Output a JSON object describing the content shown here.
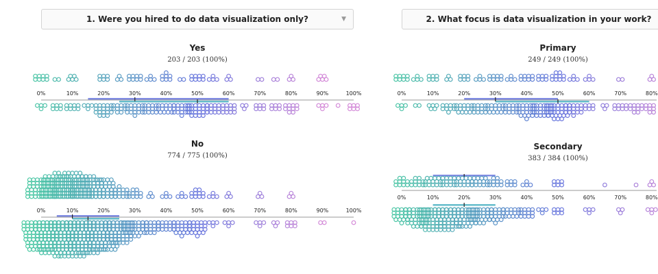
{
  "questions": [
    {
      "label": "1. Were you hired to do data visualization only?",
      "caret": "▼"
    },
    {
      "label": "2. What focus is data visualization in your work?",
      "caret": "▼"
    }
  ],
  "colors": {
    "low": "#4ec3a8",
    "mid": "#6a78de",
    "high": "#d48ad8",
    "bar_top": "#6a78de",
    "bar_bottom": "#4ab1c2",
    "axis": "#999999"
  },
  "chart_data": [
    {
      "type": "beeswarm",
      "title": "Yes",
      "subtitle": "203 / 203 (100%)",
      "xlim": [
        0,
        100
      ],
      "ticks": [
        "0%",
        "10%",
        "20%",
        "30%",
        "40%",
        "50%",
        "60%",
        "70%",
        "80%",
        "90%",
        "100%"
      ],
      "top_range": [
        15,
        60
      ],
      "top_median": 30,
      "bottom_range": [
        25,
        60
      ],
      "bottom_median": 50,
      "top_counts": [
        [
          0,
          8
        ],
        [
          5,
          2
        ],
        [
          10,
          5
        ],
        [
          20,
          6
        ],
        [
          25,
          3
        ],
        [
          30,
          8
        ],
        [
          35,
          4
        ],
        [
          40,
          7
        ],
        [
          45,
          2
        ],
        [
          50,
          8
        ],
        [
          55,
          4
        ],
        [
          60,
          3
        ],
        [
          70,
          2
        ],
        [
          75,
          2
        ],
        [
          80,
          3
        ],
        [
          90,
          5
        ]
      ],
      "bottom_counts": [
        [
          0,
          4
        ],
        [
          5,
          6
        ],
        [
          10,
          8
        ],
        [
          15,
          4
        ],
        [
          20,
          18
        ],
        [
          25,
          10
        ],
        [
          30,
          16
        ],
        [
          35,
          12
        ],
        [
          40,
          14
        ],
        [
          45,
          16
        ],
        [
          50,
          22
        ],
        [
          55,
          12
        ],
        [
          60,
          12
        ],
        [
          65,
          3
        ],
        [
          70,
          6
        ],
        [
          75,
          6
        ],
        [
          80,
          10
        ],
        [
          90,
          4
        ],
        [
          95,
          1
        ],
        [
          100,
          6
        ]
      ]
    },
    {
      "type": "beeswarm",
      "title": "No",
      "subtitle": "774 / 775 (100%)",
      "xlim": [
        0,
        100
      ],
      "ticks": [
        "0%",
        "10%",
        "20%",
        "30%",
        "40%",
        "50%",
        "60%",
        "70%",
        "80%",
        "90%",
        "100%"
      ],
      "top_range": [
        5,
        25
      ],
      "top_median": 10,
      "bottom_range": [
        10,
        25
      ],
      "bottom_median": 15,
      "top_counts": [
        [
          0,
          45
        ],
        [
          5,
          60
        ],
        [
          10,
          70
        ],
        [
          15,
          55
        ],
        [
          20,
          38
        ],
        [
          25,
          16
        ],
        [
          30,
          10
        ],
        [
          35,
          3
        ],
        [
          40,
          4
        ],
        [
          45,
          4
        ],
        [
          50,
          10
        ],
        [
          55,
          4
        ],
        [
          60,
          3
        ],
        [
          70,
          3
        ],
        [
          80,
          3
        ]
      ],
      "bottom_counts": [
        [
          0,
          80
        ],
        [
          5,
          110
        ],
        [
          10,
          115
        ],
        [
          15,
          105
        ],
        [
          20,
          80
        ],
        [
          25,
          50
        ],
        [
          30,
          30
        ],
        [
          35,
          18
        ],
        [
          40,
          15
        ],
        [
          45,
          20
        ],
        [
          50,
          20
        ],
        [
          55,
          4
        ],
        [
          60,
          4
        ],
        [
          70,
          4
        ],
        [
          75,
          3
        ],
        [
          80,
          6
        ],
        [
          90,
          2
        ],
        [
          100,
          1
        ]
      ]
    },
    {
      "type": "beeswarm",
      "title": "Primary",
      "subtitle": "249 / 249 (100%)",
      "xlim": [
        0,
        100
      ],
      "ticks": [
        "0%",
        "10%",
        "20%",
        "30%",
        "40%",
        "50%",
        "60%",
        "70%",
        "80%"
      ],
      "top_range": [
        20,
        50
      ],
      "top_median": 30,
      "bottom_range": [
        30,
        60
      ],
      "bottom_median": 50,
      "top_counts": [
        [
          0,
          8
        ],
        [
          5,
          4
        ],
        [
          10,
          6
        ],
        [
          15,
          3
        ],
        [
          20,
          6
        ],
        [
          25,
          4
        ],
        [
          30,
          8
        ],
        [
          35,
          4
        ],
        [
          40,
          8
        ],
        [
          45,
          6
        ],
        [
          50,
          10
        ],
        [
          55,
          4
        ],
        [
          60,
          4
        ],
        [
          70,
          2
        ],
        [
          80,
          3
        ],
        [
          85,
          3
        ]
      ],
      "bottom_counts": [
        [
          0,
          4
        ],
        [
          5,
          2
        ],
        [
          10,
          5
        ],
        [
          15,
          9
        ],
        [
          20,
          14
        ],
        [
          25,
          12
        ],
        [
          30,
          14
        ],
        [
          35,
          12
        ],
        [
          40,
          20
        ],
        [
          45,
          22
        ],
        [
          50,
          30
        ],
        [
          55,
          16
        ],
        [
          60,
          6
        ],
        [
          65,
          3
        ],
        [
          70,
          8
        ],
        [
          75,
          10
        ],
        [
          80,
          10
        ],
        [
          85,
          8
        ]
      ]
    },
    {
      "type": "beeswarm",
      "title": "Secondary",
      "subtitle": "383 / 384 (100%)",
      "xlim": [
        0,
        100
      ],
      "ticks": [
        "0%",
        "10%",
        "20%",
        "30%",
        "40%",
        "50%",
        "60%",
        "70%",
        "80%"
      ],
      "top_range": [
        10,
        30
      ],
      "top_median": 20,
      "bottom_range": [
        10,
        30
      ],
      "bottom_median": 20,
      "top_counts": [
        [
          0,
          10
        ],
        [
          5,
          10
        ],
        [
          10,
          14
        ],
        [
          15,
          12
        ],
        [
          20,
          14
        ],
        [
          25,
          14
        ],
        [
          30,
          10
        ],
        [
          35,
          6
        ],
        [
          40,
          4
        ],
        [
          50,
          6
        ],
        [
          65,
          1
        ],
        [
          75,
          1
        ],
        [
          80,
          3
        ]
      ],
      "bottom_counts": [
        [
          0,
          20
        ],
        [
          5,
          36
        ],
        [
          10,
          50
        ],
        [
          15,
          48
        ],
        [
          20,
          42
        ],
        [
          25,
          30
        ],
        [
          30,
          20
        ],
        [
          35,
          14
        ],
        [
          40,
          12
        ],
        [
          45,
          4
        ],
        [
          50,
          6
        ],
        [
          60,
          4
        ],
        [
          70,
          3
        ],
        [
          80,
          4
        ]
      ]
    }
  ]
}
